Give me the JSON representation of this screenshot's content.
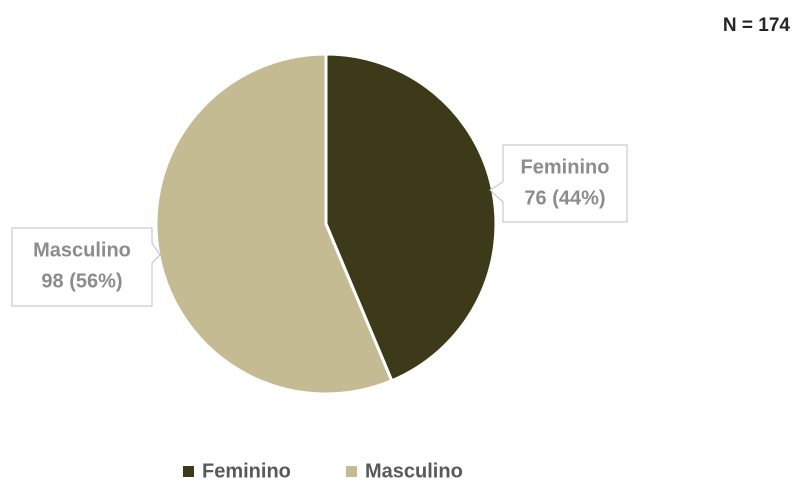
{
  "chart_data": {
    "type": "pie",
    "categories": [
      "Feminino",
      "Masculino"
    ],
    "values": [
      76,
      98
    ],
    "value_labels": [
      "76 (44%)",
      "98 (56%)"
    ],
    "colors": [
      "#3d3a1a",
      "#c4bb92"
    ],
    "annotation": "N = 174",
    "legend": "bottom"
  }
}
